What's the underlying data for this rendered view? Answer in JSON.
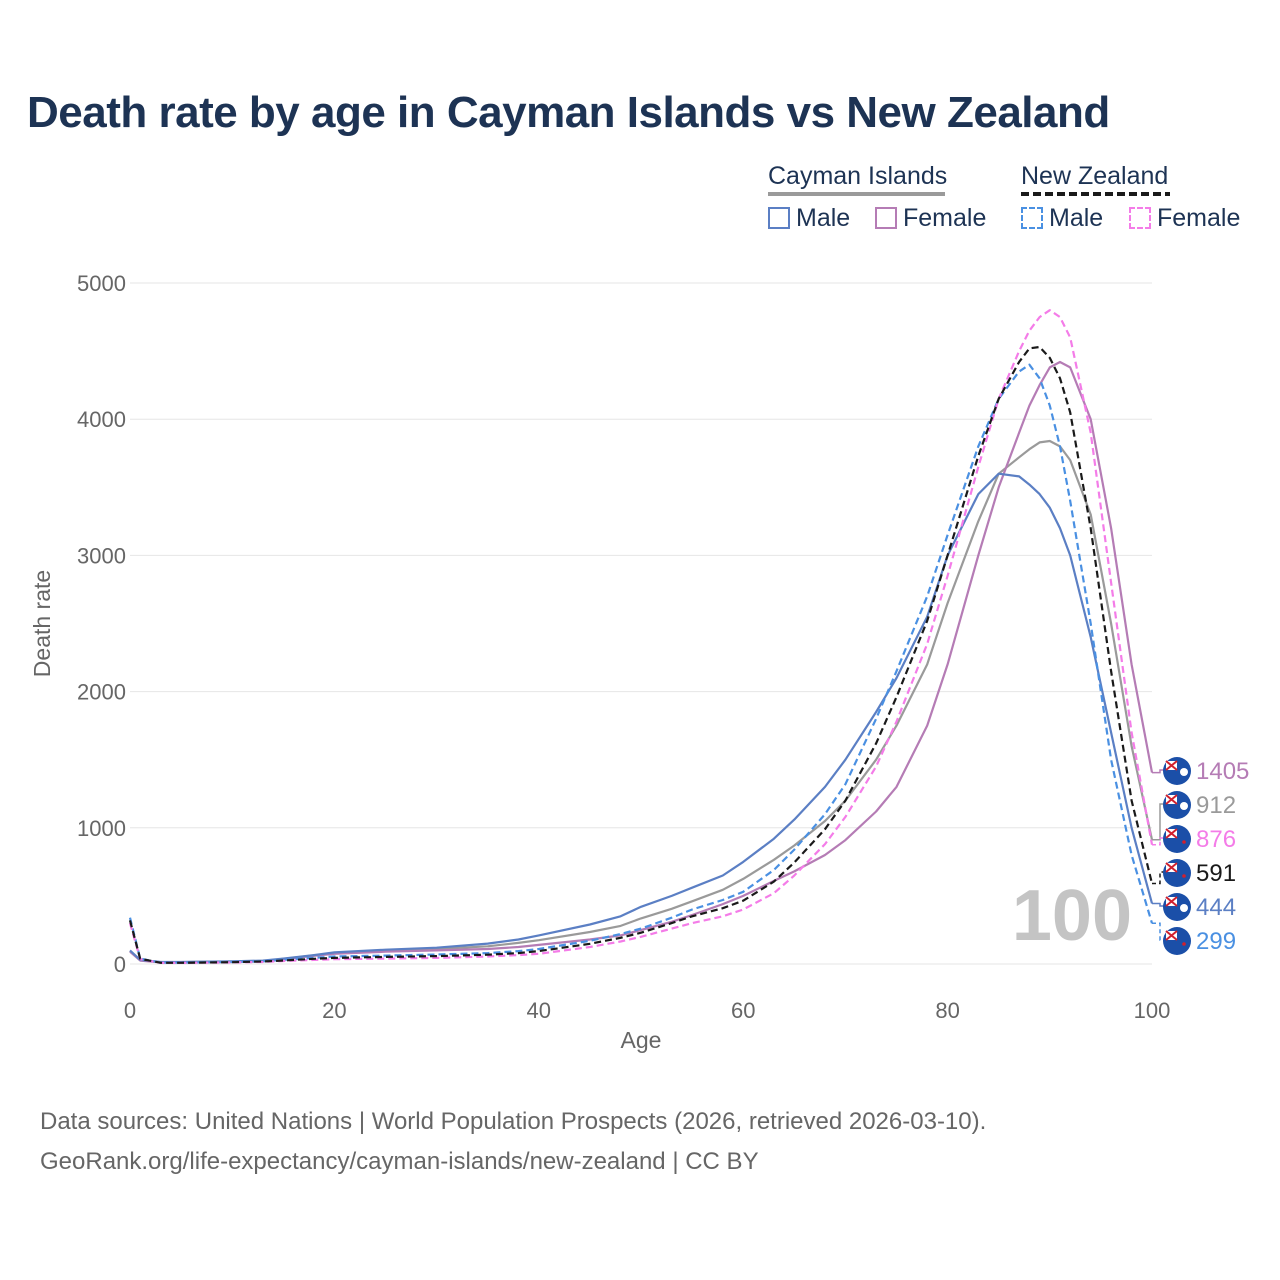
{
  "chart_data": {
    "type": "line",
    "title": "Death rate by age in Cayman Islands vs New Zealand",
    "xlabel": "Age",
    "ylabel": "Death rate",
    "xlim": [
      0,
      100
    ],
    "ylim": [
      0,
      5000
    ],
    "x_ticks": [
      "0",
      "20",
      "40",
      "60",
      "80",
      "100"
    ],
    "y_ticks": [
      "0",
      "1000",
      "2000",
      "3000",
      "4000",
      "5000"
    ],
    "grid": true,
    "current_age_label": "100",
    "legend": {
      "position": "top-right",
      "groups": [
        {
          "name": "Cayman Islands",
          "items": [
            "Male",
            "Female"
          ]
        },
        {
          "name": "New Zealand",
          "items": [
            "Male",
            "Female"
          ]
        }
      ]
    },
    "colors": {
      "cayman_male": "#5b7fc4",
      "cayman_female": "#b57cb5",
      "cayman_total": "#9a9a9a",
      "nz_male": "#4a90e2",
      "nz_female": "#f47ce8",
      "nz_total": "#1a1a1a",
      "title": "#1d3354"
    },
    "x": [
      0,
      1,
      3,
      5,
      10,
      13,
      15,
      18,
      20,
      25,
      30,
      35,
      38,
      40,
      45,
      48,
      50,
      53,
      55,
      58,
      60,
      63,
      65,
      68,
      70,
      73,
      75,
      78,
      80,
      83,
      85,
      87,
      88,
      89,
      90,
      91,
      92,
      94,
      96,
      98,
      100
    ],
    "series": [
      {
        "name": "Cayman Islands Male",
        "group": "Cayman Islands",
        "style": "solid",
        "color_key": "cayman_male",
        "end_label": "444",
        "values": [
          100,
          30,
          15,
          15,
          20,
          25,
          40,
          65,
          85,
          105,
          120,
          150,
          180,
          210,
          290,
          350,
          420,
          500,
          560,
          650,
          750,
          920,
          1060,
          1300,
          1500,
          1850,
          2100,
          2550,
          3000,
          3450,
          3600,
          3580,
          3520,
          3450,
          3350,
          3200,
          3000,
          2400,
          1700,
          1000,
          444
        ]
      },
      {
        "name": "Cayman Islands Female",
        "group": "Cayman Islands",
        "style": "solid",
        "color_key": "cayman_female",
        "end_label": "1405",
        "values": [
          90,
          25,
          12,
          12,
          15,
          20,
          35,
          60,
          75,
          90,
          100,
          110,
          125,
          140,
          180,
          210,
          250,
          310,
          360,
          440,
          500,
          610,
          680,
          800,
          910,
          1120,
          1300,
          1750,
          2200,
          3000,
          3500,
          3900,
          4100,
          4250,
          4380,
          4420,
          4380,
          4000,
          3200,
          2200,
          1405
        ]
      },
      {
        "name": "Cayman Islands Total",
        "group": "Cayman Islands",
        "style": "solid",
        "color_key": "cayman_total",
        "end_label": "912",
        "values": [
          95,
          28,
          13,
          14,
          18,
          22,
          38,
          63,
          80,
          98,
          110,
          130,
          155,
          175,
          235,
          280,
          335,
          405,
          460,
          545,
          625,
          765,
          870,
          1050,
          1200,
          1500,
          1750,
          2200,
          2650,
          3250,
          3600,
          3720,
          3780,
          3830,
          3840,
          3800,
          3700,
          3300,
          2500,
          1600,
          912
        ]
      },
      {
        "name": "New Zealand Male",
        "group": "New Zealand",
        "style": "dashed",
        "color_key": "nz_male",
        "end_label": "299",
        "values": [
          340,
          40,
          10,
          10,
          15,
          20,
          30,
          45,
          55,
          62,
          70,
          80,
          95,
          110,
          170,
          220,
          260,
          340,
          400,
          470,
          530,
          690,
          840,
          1100,
          1320,
          1800,
          2150,
          2700,
          3150,
          3800,
          4150,
          4350,
          4400,
          4300,
          4100,
          3800,
          3400,
          2500,
          1500,
          800,
          299
        ]
      },
      {
        "name": "New Zealand Female",
        "group": "New Zealand",
        "style": "dashed",
        "color_key": "nz_female",
        "end_label": "876",
        "values": [
          300,
          35,
          8,
          8,
          12,
          15,
          22,
          30,
          35,
          40,
          45,
          55,
          65,
          75,
          125,
          165,
          200,
          260,
          300,
          350,
          400,
          520,
          650,
          880,
          1080,
          1450,
          1780,
          2350,
          2850,
          3650,
          4150,
          4500,
          4650,
          4750,
          4800,
          4750,
          4600,
          3900,
          2800,
          1700,
          876
        ]
      },
      {
        "name": "New Zealand Total",
        "group": "New Zealand",
        "style": "dashed",
        "color_key": "nz_total",
        "end_label": "591",
        "values": [
          320,
          38,
          9,
          9,
          13,
          18,
          26,
          38,
          45,
          52,
          58,
          68,
          80,
          95,
          148,
          192,
          230,
          300,
          350,
          410,
          465,
          605,
          745,
          990,
          1200,
          1620,
          1960,
          2520,
          3000,
          3730,
          4150,
          4420,
          4520,
          4530,
          4450,
          4300,
          4050,
          3200,
          2150,
          1200,
          591
        ]
      }
    ]
  },
  "legend_labels": {
    "cayman": "Cayman Islands",
    "nz": "New Zealand",
    "male": "Male",
    "female": "Female"
  },
  "source_line1": "Data sources: United Nations | World Population Prospects (2026, retrieved 2026-03-10).",
  "source_line2": "GeoRank.org/life-expectancy/cayman-islands/new-zealand | CC BY"
}
